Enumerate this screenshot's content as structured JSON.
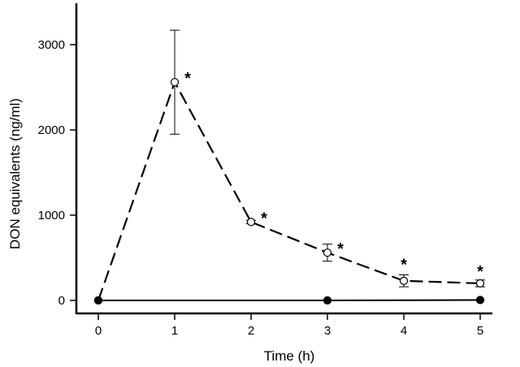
{
  "chart_data": {
    "type": "line",
    "xlabel": "Time (h)",
    "ylabel": "DON equivalents (ng/ml)",
    "xlim": [
      -0.3,
      5.1
    ],
    "ylim": [
      -100,
      3500
    ],
    "x_ticks": [
      0,
      1,
      2,
      3,
      4,
      5
    ],
    "y_ticks": [
      0,
      1000,
      2000,
      3000
    ],
    "grid": false,
    "legend": "none",
    "series": [
      {
        "style": "dashed line, open circles",
        "color": "#000000",
        "x": [
          0,
          1,
          2,
          3,
          4,
          5
        ],
        "y": [
          0,
          2560,
          920,
          560,
          230,
          200
        ],
        "error": [
          0,
          610,
          20,
          100,
          70,
          40
        ],
        "significance": [
          "",
          "*",
          "*",
          "*",
          "*",
          "*"
        ]
      },
      {
        "style": "solid line, filled circles",
        "color": "#000000",
        "x": [
          0,
          3,
          5
        ],
        "y": [
          0,
          0,
          5
        ],
        "error": [
          0,
          0,
          0
        ]
      }
    ]
  }
}
